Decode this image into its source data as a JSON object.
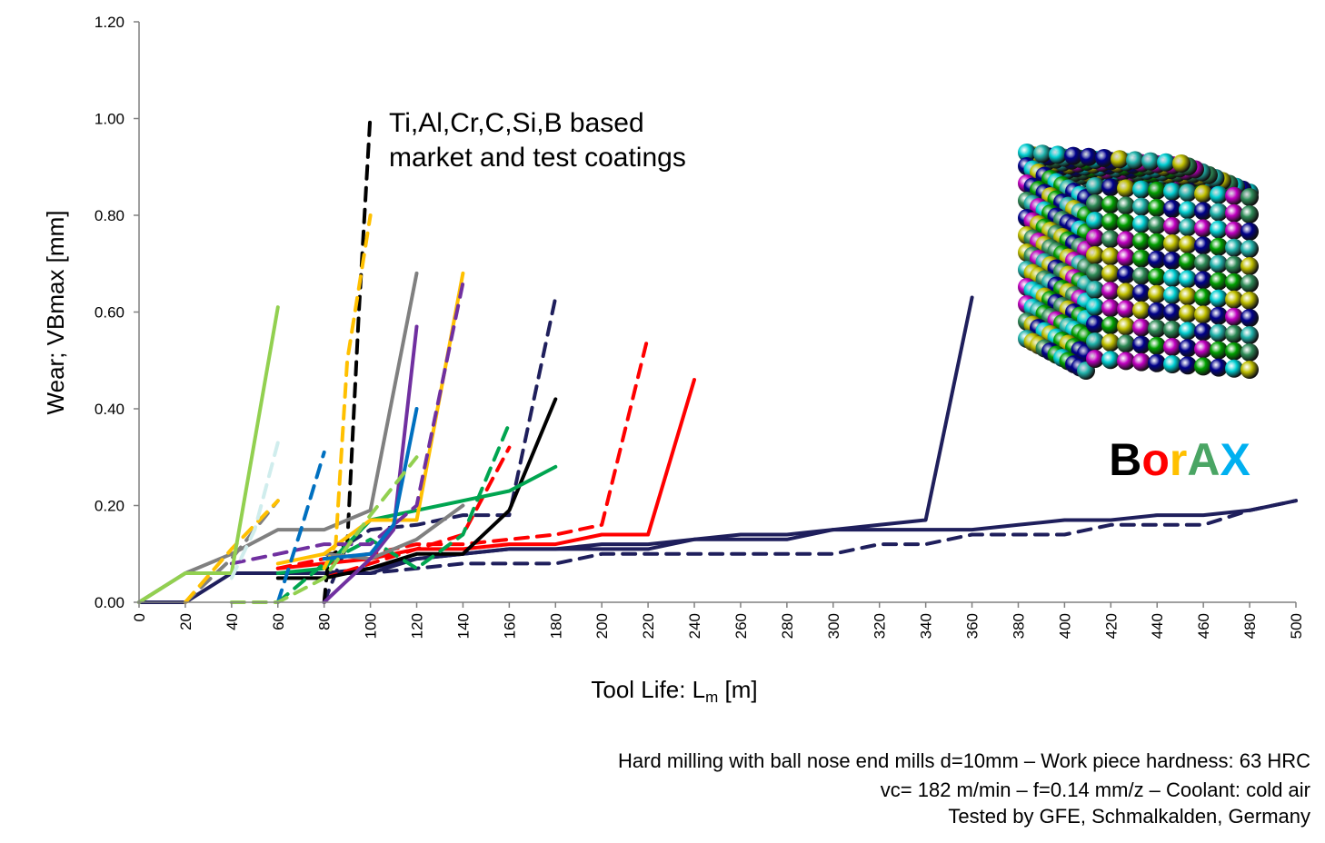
{
  "chart_data": {
    "type": "line",
    "annotation_lines": [
      "Ti,Al,Cr,C,Si,B based",
      "market and test coatings"
    ],
    "xlabel_main": "Tool Life: L",
    "xlabel_sub": "m",
    "xlabel_unit": " [m]",
    "ylabel": "Wear; VBmax [mm]",
    "xlim": [
      0,
      500
    ],
    "ylim": [
      0,
      1.2
    ],
    "xticks": [
      0,
      20,
      40,
      60,
      80,
      100,
      120,
      140,
      160,
      180,
      200,
      220,
      240,
      260,
      280,
      300,
      320,
      340,
      360,
      380,
      400,
      420,
      440,
      460,
      480,
      500
    ],
    "yticks": [
      {
        "value": 0,
        "label": "0.00"
      },
      {
        "value": 0.2,
        "label": "0.20"
      },
      {
        "value": 0.4,
        "label": "0.40"
      },
      {
        "value": 0.6,
        "label": "0.60"
      },
      {
        "value": 0.8,
        "label": "0.80"
      },
      {
        "value": 1.0,
        "label": "1.00"
      },
      {
        "value": 1.2,
        "label": "1.20"
      }
    ],
    "grid": false,
    "legend": "none",
    "series": [
      {
        "color": "#1f1f5c",
        "dashed": false,
        "x": [
          0,
          20,
          40,
          60,
          80,
          100,
          120,
          140,
          160,
          180,
          200,
          220,
          240,
          260,
          280,
          300,
          320,
          340,
          360,
          380,
          400,
          420,
          440,
          460,
          480,
          500
        ],
        "y": [
          0,
          0,
          0.06,
          0.06,
          0.06,
          0.07,
          0.09,
          0.1,
          0.11,
          0.11,
          0.11,
          0.11,
          0.13,
          0.13,
          0.13,
          0.15,
          0.15,
          0.15,
          0.15,
          0.16,
          0.17,
          0.17,
          0.18,
          0.18,
          0.19,
          0.21
        ]
      },
      {
        "color": "#1f1f5c",
        "dashed": true,
        "x": [
          40,
          60,
          80,
          100,
          120,
          140,
          160,
          180,
          200,
          220,
          240,
          260,
          280,
          300,
          320,
          340,
          360,
          380,
          400,
          420,
          440,
          460,
          480,
          500
        ],
        "y": [
          0.06,
          0.06,
          0.06,
          0.06,
          0.07,
          0.08,
          0.08,
          0.08,
          0.1,
          0.1,
          0.1,
          0.1,
          0.1,
          0.1,
          0.12,
          0.12,
          0.14,
          0.14,
          0.14,
          0.16,
          0.16,
          0.16,
          0.19,
          0.21
        ]
      },
      {
        "color": "#1f1f5c",
        "dashed": false,
        "x": [
          40,
          60,
          80,
          100,
          120,
          140,
          160,
          180,
          200,
          220,
          240,
          260,
          280,
          300,
          320,
          340,
          360
        ],
        "y": [
          0.06,
          0.06,
          0.06,
          0.06,
          0.09,
          0.1,
          0.11,
          0.11,
          0.12,
          0.12,
          0.13,
          0.14,
          0.14,
          0.15,
          0.16,
          0.17,
          0.63
        ]
      },
      {
        "color": "#1f1f5c",
        "dashed": true,
        "x": [
          80,
          90,
          100,
          120,
          140,
          160,
          180
        ],
        "y": [
          0,
          0.12,
          0.15,
          0.16,
          0.18,
          0.18,
          0.63
        ]
      },
      {
        "color": "#ff0000",
        "dashed": false,
        "x": [
          60,
          80,
          100,
          120,
          140,
          160,
          180,
          200,
          220,
          240
        ],
        "y": [
          0.07,
          0.08,
          0.09,
          0.11,
          0.11,
          0.12,
          0.12,
          0.14,
          0.14,
          0.46
        ]
      },
      {
        "color": "#ff0000",
        "dashed": true,
        "x": [
          60,
          80,
          100,
          120,
          140,
          160,
          180,
          200,
          220
        ],
        "y": [
          0.07,
          0.09,
          0.1,
          0.12,
          0.12,
          0.13,
          0.14,
          0.16,
          0.55
        ]
      },
      {
        "color": "#ff0000",
        "dashed": true,
        "x": [
          80,
          100,
          120,
          140,
          160
        ],
        "y": [
          0.05,
          0.08,
          0.11,
          0.14,
          0.32
        ]
      },
      {
        "color": "#000000",
        "dashed": false,
        "x": [
          60,
          80,
          100,
          120,
          140,
          160,
          180
        ],
        "y": [
          0.05,
          0.05,
          0.07,
          0.1,
          0.1,
          0.19,
          0.42
        ]
      },
      {
        "color": "#000000",
        "dashed": true,
        "x": [
          80,
          82,
          84,
          90,
          95,
          100
        ],
        "y": [
          0,
          0.1,
          0.1,
          0.12,
          0.6,
          1.01
        ]
      },
      {
        "color": "#00a550",
        "dashed": false,
        "x": [
          60,
          80,
          100,
          120,
          140,
          160,
          180
        ],
        "y": [
          0.06,
          0.07,
          0.17,
          0.19,
          0.21,
          0.23,
          0.28
        ]
      },
      {
        "color": "#00a550",
        "dashed": true,
        "x": [
          60,
          80,
          100,
          120,
          140,
          160
        ],
        "y": [
          0,
          0.08,
          0.13,
          0.07,
          0.14,
          0.37
        ]
      },
      {
        "color": "#808080",
        "dashed": false,
        "x": [
          0,
          20,
          40,
          60,
          80,
          100,
          120
        ],
        "y": [
          0,
          0.06,
          0.1,
          0.15,
          0.15,
          0.19,
          0.68
        ]
      },
      {
        "color": "#808080",
        "dashed": false,
        "x": [
          80,
          100,
          120,
          140
        ],
        "y": [
          0.1,
          0.09,
          0.13,
          0.2
        ]
      },
      {
        "color": "#808080",
        "dashed": true,
        "x": [
          20,
          40,
          60
        ],
        "y": [
          0,
          0.09,
          0.21
        ]
      },
      {
        "color": "#ffc000",
        "dashed": false,
        "x": [
          60,
          80,
          100,
          120,
          140
        ],
        "y": [
          0.08,
          0.1,
          0.17,
          0.17,
          0.68
        ]
      },
      {
        "color": "#ffc000",
        "dashed": true,
        "x": [
          80,
          85,
          90,
          95,
          100
        ],
        "y": [
          0.07,
          0.12,
          0.5,
          0.65,
          0.8
        ]
      },
      {
        "color": "#ffc000",
        "dashed": true,
        "x": [
          20,
          40,
          60
        ],
        "y": [
          0,
          0.11,
          0.21
        ]
      },
      {
        "color": "#7030a0",
        "dashed": false,
        "x": [
          80,
          100,
          110,
          120
        ],
        "y": [
          0,
          0.09,
          0.15,
          0.57
        ]
      },
      {
        "color": "#7030a0",
        "dashed": true,
        "x": [
          40,
          60,
          80,
          100,
          120,
          140
        ],
        "y": [
          0.08,
          0.1,
          0.12,
          0.12,
          0.2,
          0.66
        ]
      },
      {
        "color": "#0070c0",
        "dashed": false,
        "x": [
          80,
          100,
          110,
          120
        ],
        "y": [
          0.09,
          0.1,
          0.16,
          0.4
        ]
      },
      {
        "color": "#0070c0",
        "dashed": true,
        "x": [
          60,
          70,
          80
        ],
        "y": [
          0,
          0.15,
          0.31
        ]
      },
      {
        "color": "#92d050",
        "dashed": false,
        "x": [
          0,
          20,
          40,
          60
        ],
        "y": [
          0,
          0.06,
          0.06,
          0.61
        ]
      },
      {
        "color": "#92d050",
        "dashed": true,
        "x": [
          40,
          60,
          80,
          100,
          120
        ],
        "y": [
          0,
          0,
          0.05,
          0.18,
          0.3
        ]
      },
      {
        "color": "#d0eded",
        "dashed": true,
        "x": [
          40,
          50,
          60
        ],
        "y": [
          0.05,
          0.15,
          0.33
        ]
      }
    ]
  },
  "brand": {
    "letters": [
      {
        "char": "B",
        "color": "#000000"
      },
      {
        "char": "o",
        "color": "#ff0000"
      },
      {
        "char": "r",
        "color": "#ffc000"
      },
      {
        "char": "A",
        "color": "#4aa564"
      },
      {
        "char": "X",
        "color": "#00b0f0"
      }
    ],
    "sphere_colors": [
      "#00008b",
      "#00ced1",
      "#00a000",
      "#c0c000",
      "#c000c0",
      "#20b2aa",
      "#2e8b57"
    ]
  },
  "footnote": {
    "line1": "Hard milling with ball nose end mills d=10mm – Work piece hardness: 63 HRC",
    "line2": "vc= 182 m/min – f=0.14 mm/z – Coolant: cold air",
    "line3": "Tested by GFE, Schmalkalden, Germany"
  }
}
